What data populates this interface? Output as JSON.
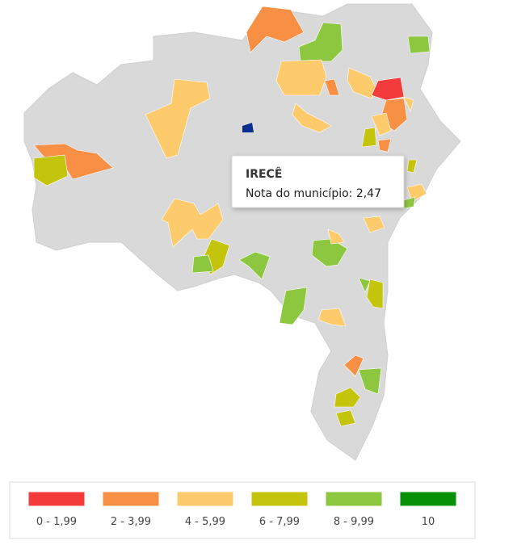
{
  "tooltip": {
    "title": "IRECÊ",
    "text": "Nota do município: 2,47"
  },
  "legend": [
    {
      "label": "0 - 1,99",
      "color": "#f43b3b"
    },
    {
      "label": "2 - 3,99",
      "color": "#f78f45"
    },
    {
      "label": "4 - 5,99",
      "color": "#fdca6c"
    },
    {
      "label": "6 - 7,99",
      "color": "#c4c40c"
    },
    {
      "label": "8 - 9,99",
      "color": "#8dc63f"
    },
    {
      "label": "10",
      "color": "#089108"
    }
  ]
}
